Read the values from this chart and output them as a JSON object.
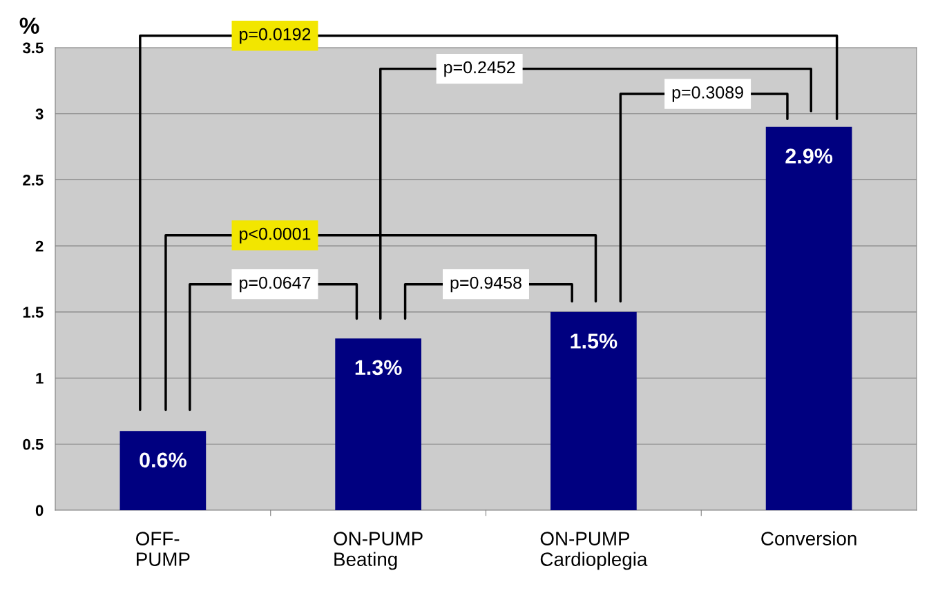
{
  "chart_data": {
    "type": "bar",
    "ylabel": "%",
    "categories": [
      "OFF-\nPUMP",
      "ON-PUMP\nBeating",
      "ON-PUMP\nCardioplegia",
      "Conversion"
    ],
    "values": [
      0.6,
      1.3,
      1.5,
      2.9
    ],
    "value_labels": [
      "0.6%",
      "1.3%",
      "1.5%",
      "2.9%"
    ],
    "color": "#000080",
    "ylim": [
      0,
      3.5
    ],
    "yticks": [
      0,
      0.5,
      1,
      1.5,
      2,
      2.5,
      3,
      3.5
    ],
    "grid": "y",
    "annotations": [
      "p=0.0192",
      "p=0.2452",
      "p=0.3089",
      "p<0.0001",
      "p=0.0647",
      "p=0.9458"
    ]
  }
}
